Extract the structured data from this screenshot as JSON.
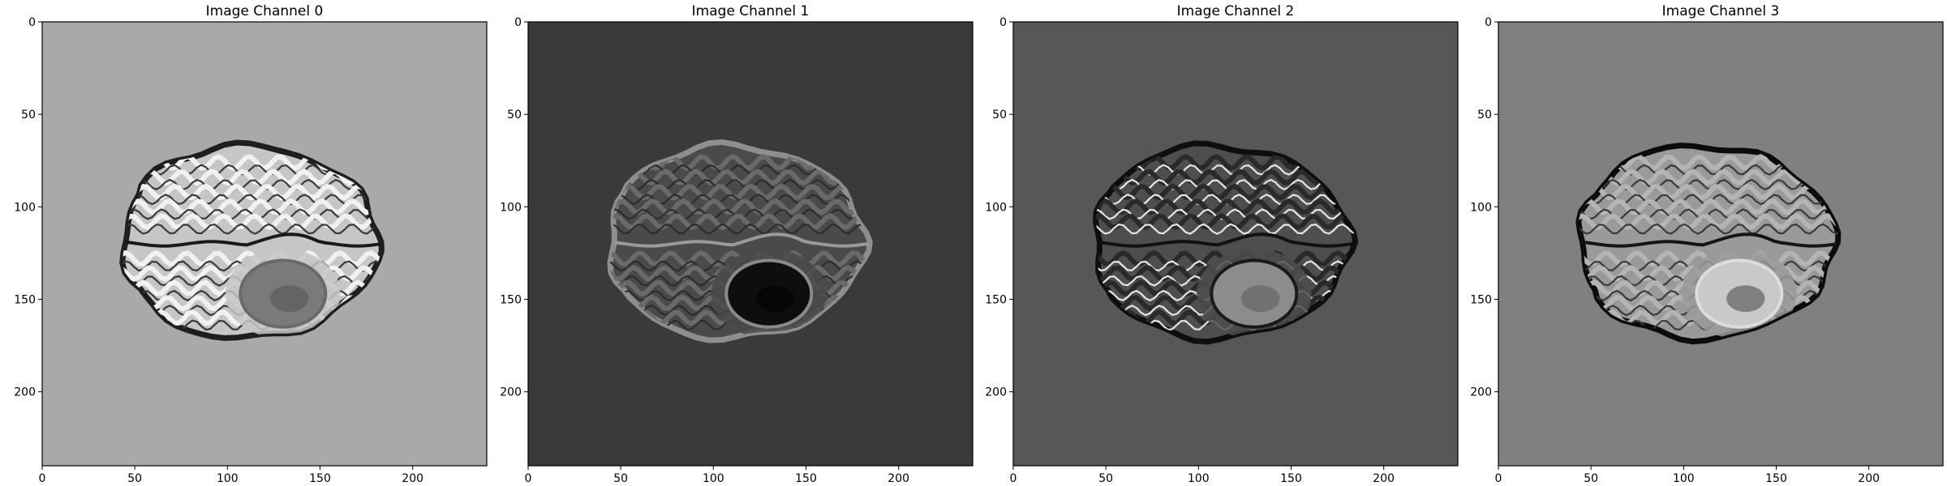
{
  "figure": {
    "panels": [
      {
        "title": "Image Channel 0",
        "background": "#a9a9a9",
        "brain_fill": "#c6c6c6",
        "brain_edge": "#1e1e1e",
        "gyri_color": "#f1f1f1",
        "sulci_color": "#3a3a3a",
        "midline_color": "#1a1a1a",
        "lesion_fill": "#7a7a7a",
        "lesion_edge": "#6a6a6a",
        "lesion_core": "#5f5f5f"
      },
      {
        "title": "Image Channel 1",
        "background": "#3a3a3a",
        "brain_fill": "#4a4a4a",
        "brain_edge": "#8e8e8e",
        "gyri_color": "#6a6a6a",
        "sulci_color": "#2c2c2c",
        "midline_color": "#9a9a9a",
        "lesion_fill": "#0e0e0e",
        "lesion_edge": "#8a8a8a",
        "lesion_core": "#050505"
      },
      {
        "title": "Image Channel 2",
        "background": "#575757",
        "brain_fill": "#4e4e4e",
        "brain_edge": "#0e0e0e",
        "gyri_color": "#2a2a2a",
        "sulci_color": "#e6e6e6",
        "midline_color": "#111111",
        "lesion_fill": "#8c8c8c",
        "lesion_edge": "#1a1a1a",
        "lesion_core": "#6a6a6a"
      },
      {
        "title": "Image Channel 3",
        "background": "#808080",
        "brain_fill": "#9a9a9a",
        "brain_edge": "#0c0c0c",
        "gyri_color": "#b4b4b4",
        "sulci_color": "#3a3a3a",
        "midline_color": "#151515",
        "lesion_fill": "#c9c9c9",
        "lesion_edge": "#dcdcdc",
        "lesion_core": "#6e6e6e"
      }
    ],
    "axis": {
      "x_range": [
        0,
        240
      ],
      "y_range": [
        0,
        240
      ],
      "x_ticks": [
        0,
        50,
        100,
        150,
        200
      ],
      "y_ticks": [
        0,
        50,
        100,
        150,
        200
      ]
    }
  }
}
